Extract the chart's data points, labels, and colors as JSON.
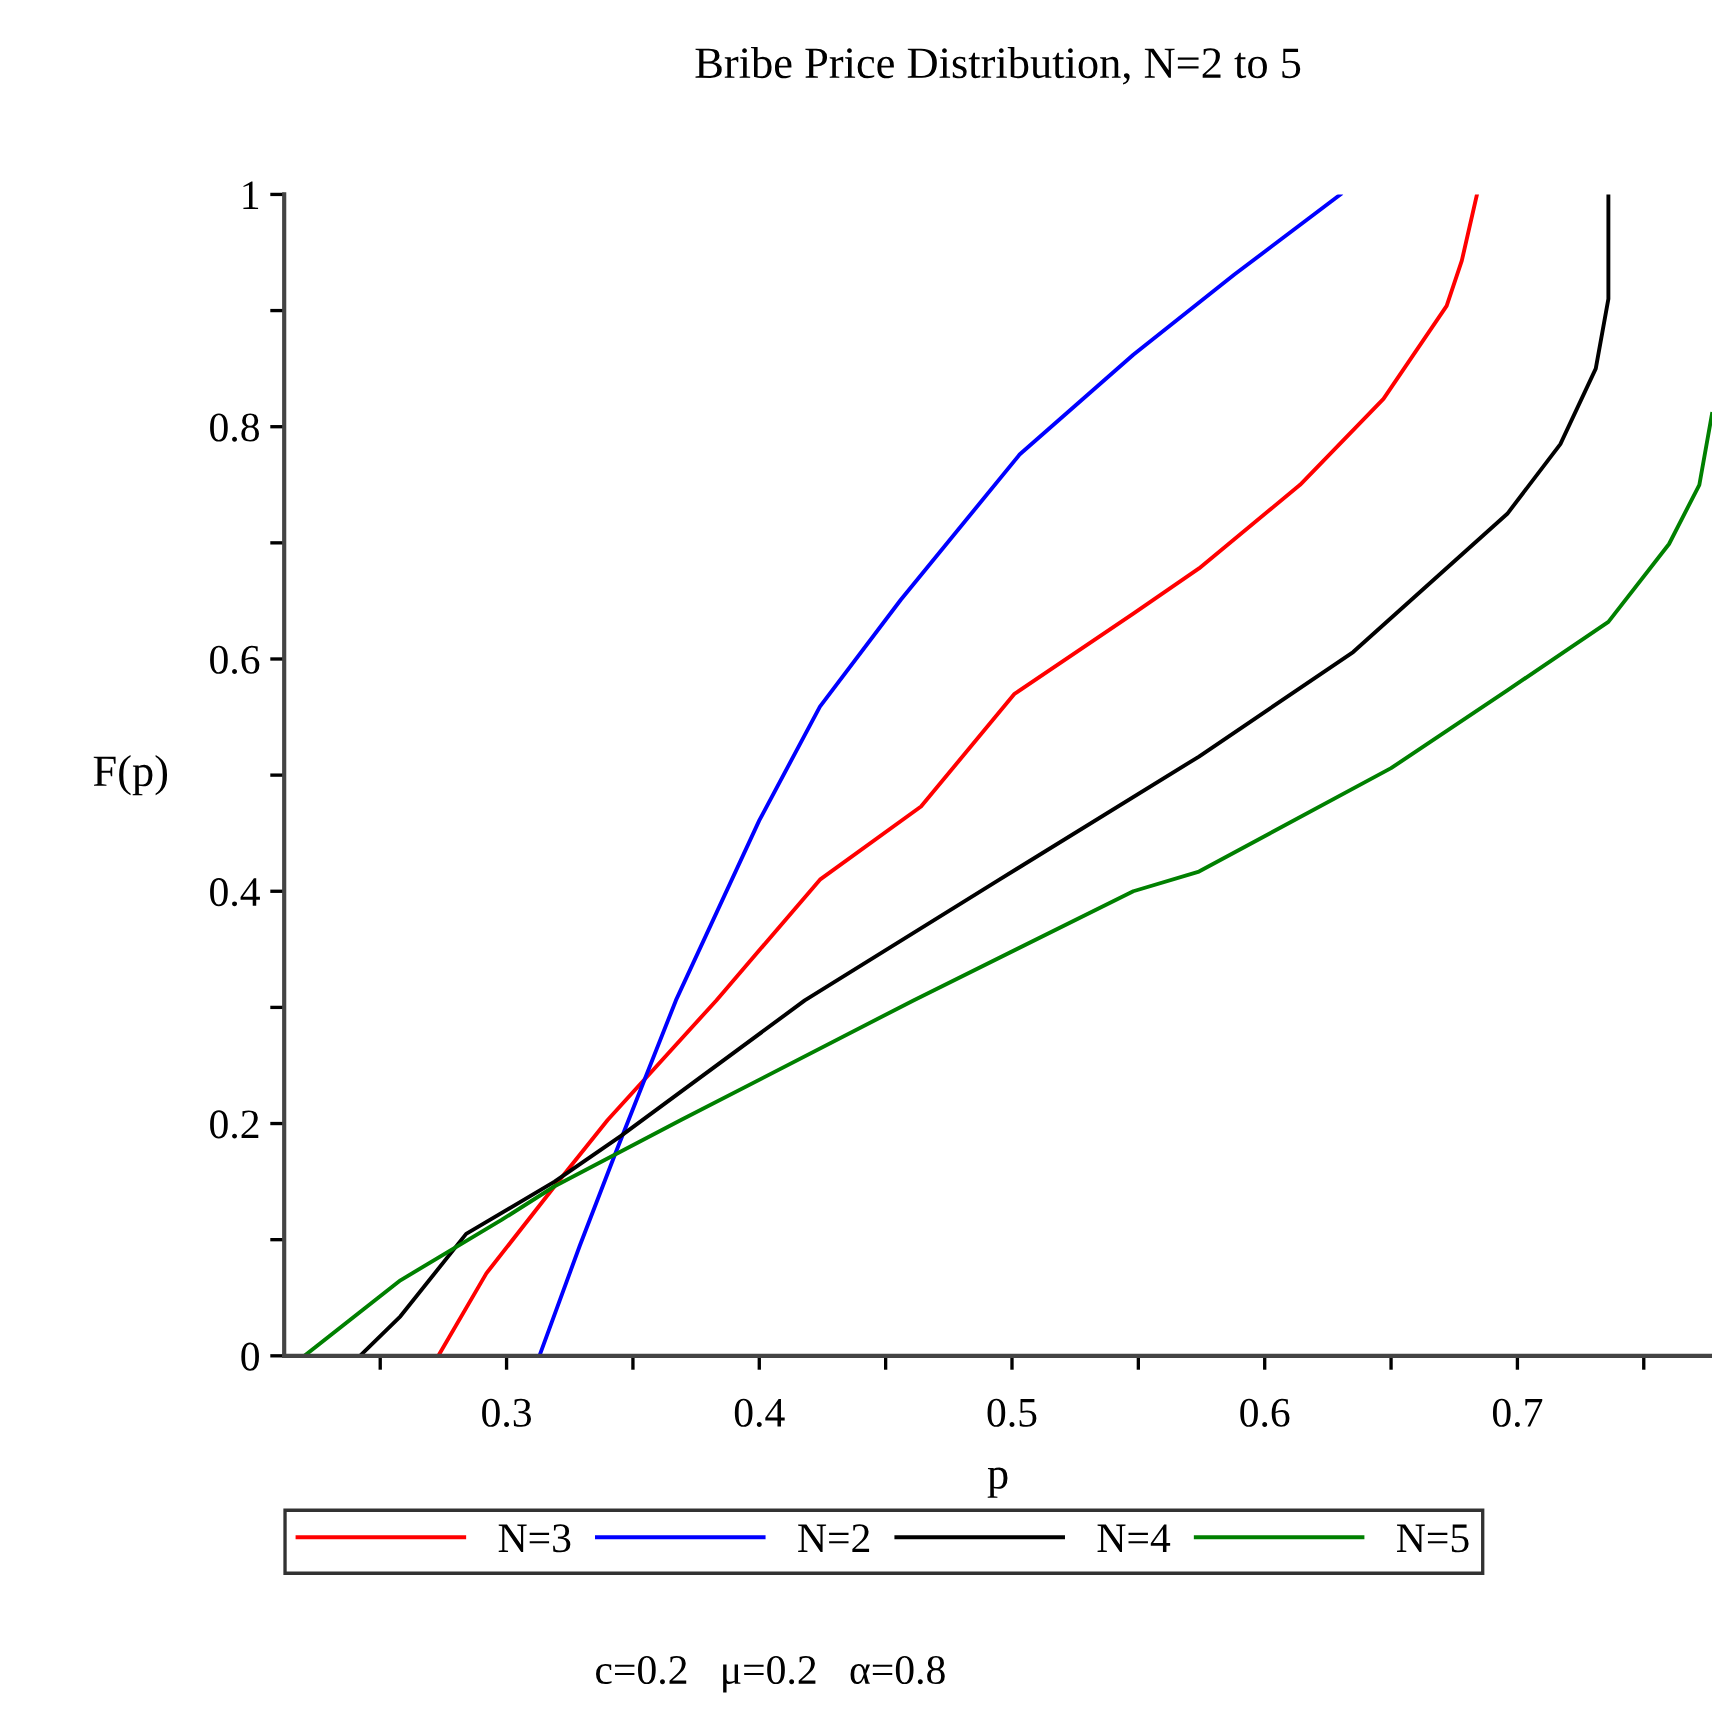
{
  "chart_data": {
    "type": "line",
    "title": "Bribe Price Distribution, N=2 to 5",
    "xlabel": "p",
    "ylabel": "F(p)",
    "xlim": [
      0.212,
      0.777
    ],
    "ylim": [
      0,
      1
    ],
    "xticks": [
      {
        "value": 0.25,
        "label": null
      },
      0.3,
      {
        "value": 0.35,
        "label": null
      },
      0.4,
      {
        "value": 0.45,
        "label": null
      },
      0.5,
      {
        "value": 0.55,
        "label": null
      },
      0.6,
      {
        "value": 0.65,
        "label": null
      },
      0.7,
      {
        "value": 0.75,
        "label": null
      }
    ],
    "yticks": [
      0,
      {
        "value": 0.1,
        "label": null
      },
      0.2,
      {
        "value": 0.3,
        "label": null
      },
      0.4,
      {
        "value": 0.5,
        "label": null
      },
      0.6,
      {
        "value": 0.7,
        "label": null
      },
      0.8,
      {
        "value": 0.9,
        "label": null
      },
      1
    ],
    "grid": false,
    "legend": "bottom",
    "line_style": "solid",
    "marker": "none",
    "series": [
      {
        "name": "N=3",
        "color": "#ff0000",
        "x": [
          0.273,
          0.292,
          0.319,
          0.34,
          0.383,
          0.424,
          0.464,
          0.501,
          0.548,
          0.574,
          0.614,
          0.647,
          0.672,
          0.678,
          0.684
        ],
        "values": [
          0,
          0.071,
          0.146,
          0.203,
          0.306,
          0.41,
          0.473,
          0.57,
          0.639,
          0.678,
          0.75,
          0.824,
          0.904,
          0.943,
          1.0
        ]
      },
      {
        "name": "N=2",
        "color": "#0000ff",
        "x": [
          0.313,
          0.329,
          0.343,
          0.367,
          0.4,
          0.424,
          0.456,
          0.503,
          0.548,
          0.588,
          0.63
        ],
        "values": [
          0,
          0.095,
          0.174,
          0.306,
          0.461,
          0.559,
          0.651,
          0.776,
          0.862,
          0.931,
          1.0
        ]
      },
      {
        "name": "N=4",
        "color": "#000000",
        "x": [
          0.242,
          0.258,
          0.284,
          0.319,
          0.345,
          0.418,
          0.495,
          0.574,
          0.635,
          0.696,
          0.717,
          0.731,
          0.736,
          0.736
        ],
        "values": [
          0,
          0.034,
          0.105,
          0.15,
          0.189,
          0.306,
          0.41,
          0.516,
          0.606,
          0.725,
          0.785,
          0.85,
          0.91,
          1.0
        ]
      },
      {
        "name": "N=5",
        "color": "#008000",
        "x": [
          0.22,
          0.258,
          0.298,
          0.319,
          0.369,
          0.461,
          0.548,
          0.574,
          0.65,
          0.696,
          0.736,
          0.76,
          0.772,
          0.777
        ],
        "values": [
          0,
          0.065,
          0.117,
          0.146,
          0.203,
          0.306,
          0.4,
          0.417,
          0.506,
          0.573,
          0.632,
          0.699,
          0.75,
          0.811
        ]
      }
    ],
    "annotations": [
      "c=0.2   μ=0.2   α=0.8"
    ]
  }
}
